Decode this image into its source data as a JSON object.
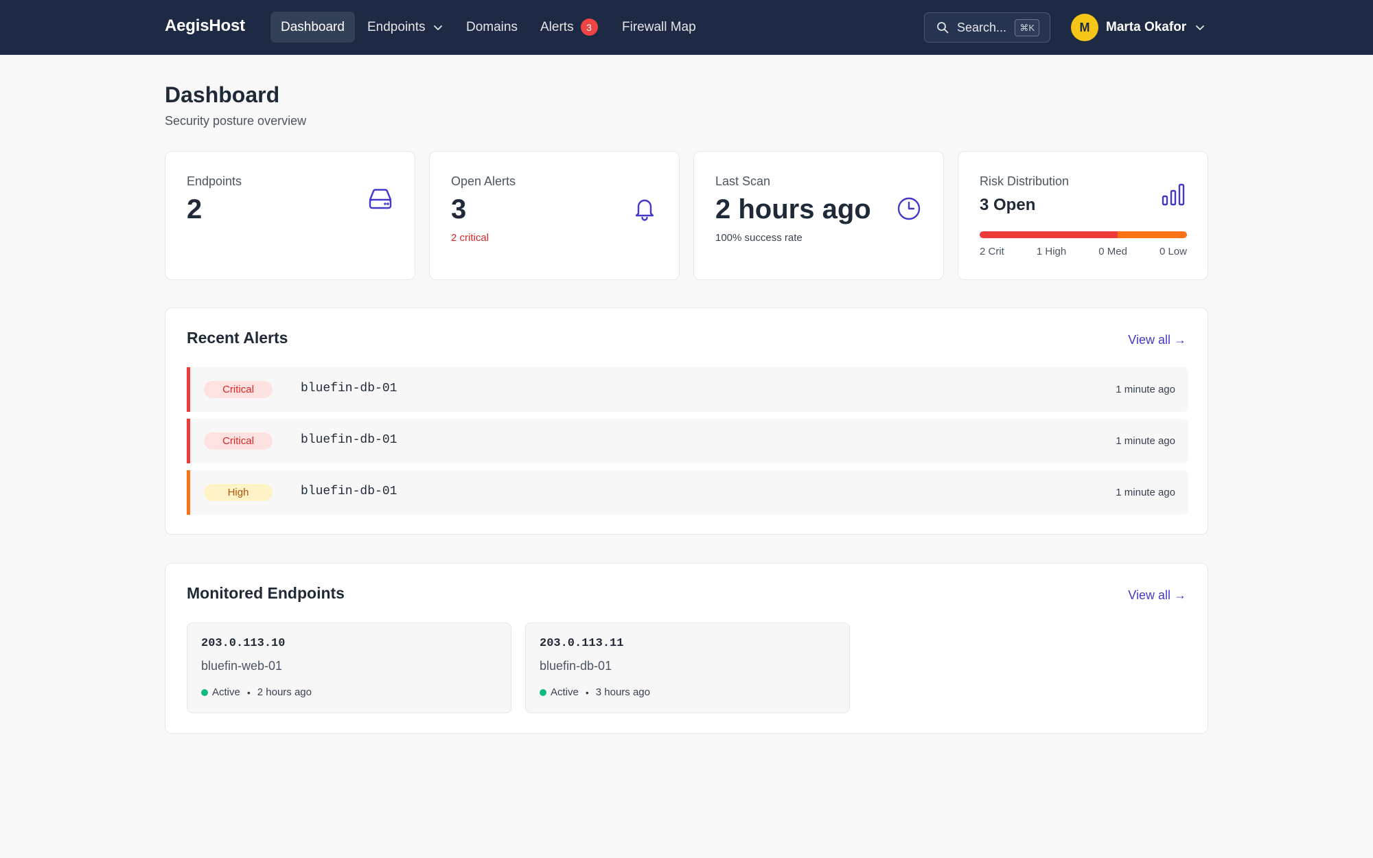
{
  "nav": {
    "brand": "AegisHost",
    "items": [
      {
        "label": "Dashboard"
      },
      {
        "label": "Endpoints"
      },
      {
        "label": "Domains"
      },
      {
        "label": "Alerts",
        "badge": "3"
      },
      {
        "label": "Firewall Map"
      }
    ],
    "search": {
      "placeholder": "Search...",
      "shortcut": "⌘K"
    },
    "user": {
      "initial": "M",
      "name": "Marta Okafor"
    }
  },
  "page": {
    "title": "Dashboard",
    "subtitle": "Security posture overview"
  },
  "stats": {
    "endpoints": {
      "label": "Endpoints",
      "value": "2"
    },
    "open_alerts": {
      "label": "Open Alerts",
      "value": "3",
      "sub": "2 critical"
    },
    "last_scan": {
      "label": "Last Scan",
      "value": "2 hours ago",
      "sub": "100% success rate"
    },
    "risk": {
      "label": "Risk Distribution",
      "value": "3 Open",
      "segments": [
        {
          "label": "2 Crit",
          "count": 2,
          "color": "#ef3a3a"
        },
        {
          "label": "1 High",
          "count": 1,
          "color": "#f97316"
        },
        {
          "label": "0 Med",
          "count": 0,
          "color": "#eab308"
        },
        {
          "label": "0 Low",
          "count": 0,
          "color": "#22c55e"
        }
      ]
    }
  },
  "recent_alerts": {
    "title": "Recent Alerts",
    "view_all": "View all →",
    "rows": [
      {
        "severity": "Critical",
        "host": "bluefin-db-01",
        "time": "1 minute ago",
        "color": "#ef3a3a"
      },
      {
        "severity": "Critical",
        "host": "bluefin-db-01",
        "time": "1 minute ago",
        "color": "#ef3a3a"
      },
      {
        "severity": "High",
        "host": "bluefin-db-01",
        "time": "1 minute ago",
        "color": "#f97316"
      }
    ]
  },
  "endpoints": {
    "title": "Monitored Endpoints",
    "view_all": "View all →",
    "cards": [
      {
        "ip": "203.0.113.10",
        "name": "bluefin-web-01",
        "status": "Active",
        "last_seen": "2 hours ago"
      },
      {
        "ip": "203.0.113.11",
        "name": "bluefin-db-01",
        "status": "Active",
        "last_seen": "3 hours ago"
      }
    ]
  },
  "colors": {
    "nav_bg": "#1e2a44",
    "accent": "#4338ca",
    "critical": "#ef3a3a",
    "high": "#f97316",
    "active": "#10b981"
  },
  "icons": [
    "search-icon",
    "chevron-down-icon",
    "hard-drive-icon",
    "bell-icon",
    "clock-icon",
    "bar-chart-icon"
  ]
}
